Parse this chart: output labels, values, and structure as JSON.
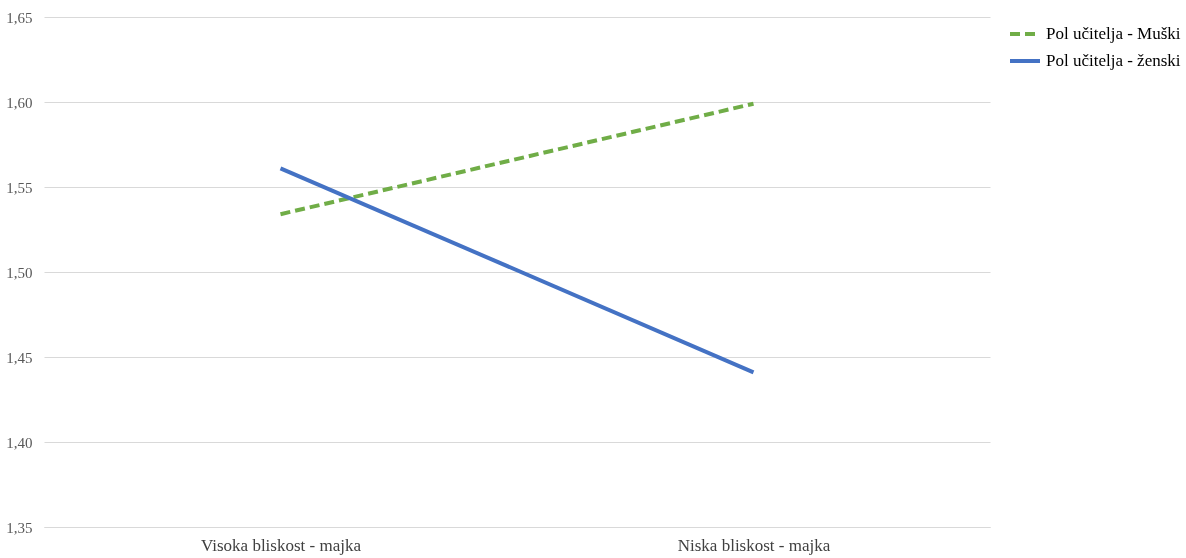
{
  "chart_data": {
    "type": "line",
    "categories": [
      "Visoka bliskost - majka",
      "Niska bliskost - majka"
    ],
    "series": [
      {
        "name": "Pol učitelja - Muški",
        "color": "#70ad47",
        "values": [
          1.534,
          1.599
        ],
        "line_style": "dashed"
      },
      {
        "name": "Pol učitelja - ženski",
        "color": "#4472c4",
        "values": [
          1.561,
          1.441
        ],
        "line_style": "solid"
      }
    ],
    "ylim": [
      1.35,
      1.65
    ],
    "yticks": [
      {
        "value": 1.35,
        "label": "1,35"
      },
      {
        "value": 1.4,
        "label": "1,40"
      },
      {
        "value": 1.45,
        "label": "1,45"
      },
      {
        "value": 1.5,
        "label": "1,50"
      },
      {
        "value": 1.55,
        "label": "1,55"
      },
      {
        "value": 1.6,
        "label": "1,60"
      },
      {
        "value": 1.65,
        "label": "1,65"
      }
    ],
    "grid": "y",
    "legend": "right",
    "marker": "none"
  }
}
